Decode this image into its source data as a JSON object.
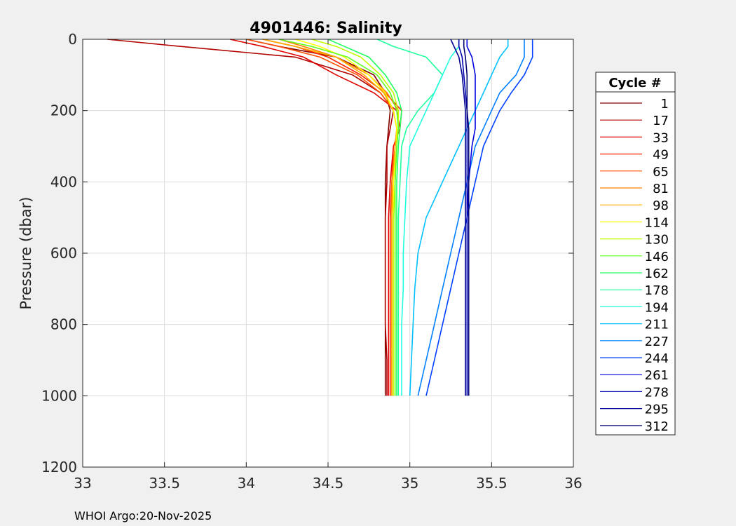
{
  "chart_data": {
    "type": "line",
    "title": "4901446:  Salinity",
    "xlabel": "",
    "ylabel": "Pressure (dbar)",
    "xlim": [
      33,
      36
    ],
    "ylim": [
      0,
      1200
    ],
    "y_reversed": true,
    "grid": true,
    "x_ticks": [
      "33",
      "33.5",
      "34",
      "34.5",
      "35",
      "35.5",
      "36"
    ],
    "y_ticks": [
      "0",
      "200",
      "400",
      "600",
      "800",
      "1000",
      "1200"
    ],
    "legend": {
      "title": "Cycle #",
      "placement": "right-outside",
      "entries": [
        "1",
        "17",
        "33",
        "49",
        "65",
        "81",
        "98",
        "114",
        "130",
        "146",
        "162",
        "178",
        "194",
        "211",
        "227",
        "244",
        "261",
        "278",
        "295",
        "312"
      ]
    },
    "pressure_levels": [
      0,
      20,
      50,
      100,
      150,
      200,
      250,
      300,
      400,
      500,
      600,
      700,
      800,
      900,
      1000
    ],
    "series": [
      {
        "name": "1",
        "color": "#800000",
        "salinity": [
          34.0,
          34.2,
          34.55,
          34.78,
          34.85,
          34.88,
          34.87,
          34.86,
          34.85,
          34.85,
          34.85,
          34.85,
          34.85,
          34.85,
          34.85
        ]
      },
      {
        "name": "17",
        "color": "#b00000",
        "salinity": [
          33.15,
          33.6,
          34.3,
          34.65,
          34.82,
          34.9,
          34.88,
          34.86,
          34.86,
          34.85,
          34.85,
          34.85,
          34.85,
          34.86,
          34.86
        ]
      },
      {
        "name": "33",
        "color": "#e00000",
        "salinity": [
          33.9,
          34.1,
          34.35,
          34.55,
          34.78,
          34.92,
          34.94,
          34.9,
          34.88,
          34.87,
          34.87,
          34.87,
          34.87,
          34.87,
          34.87
        ]
      },
      {
        "name": "49",
        "color": "#ff2000",
        "salinity": [
          34.1,
          34.3,
          34.5,
          34.7,
          34.85,
          34.95,
          34.94,
          34.9,
          34.89,
          34.88,
          34.88,
          34.88,
          34.88,
          34.88,
          34.88
        ]
      },
      {
        "name": "65",
        "color": "#ff5000",
        "salinity": [
          34.0,
          34.2,
          34.45,
          34.68,
          34.82,
          34.9,
          34.92,
          34.91,
          34.89,
          34.89,
          34.89,
          34.89,
          34.89,
          34.89,
          34.89
        ]
      },
      {
        "name": "81",
        "color": "#ff8000",
        "salinity": [
          34.2,
          34.35,
          34.55,
          34.75,
          34.86,
          34.93,
          34.93,
          34.91,
          34.89,
          34.89,
          34.89,
          34.89,
          34.89,
          34.89,
          34.89
        ]
      },
      {
        "name": "98",
        "color": "#ffb000",
        "salinity": [
          34.1,
          34.3,
          34.55,
          34.72,
          34.84,
          34.9,
          34.92,
          34.91,
          34.9,
          34.89,
          34.89,
          34.89,
          34.89,
          34.89,
          34.89
        ]
      },
      {
        "name": "114",
        "color": "#ffff00",
        "salinity": [
          34.3,
          34.45,
          34.6,
          34.75,
          34.85,
          34.9,
          34.92,
          34.92,
          34.9,
          34.9,
          34.9,
          34.9,
          34.9,
          34.9,
          34.9
        ]
      },
      {
        "name": "130",
        "color": "#c0ff00",
        "salinity": [
          34.4,
          34.55,
          34.7,
          34.82,
          34.9,
          34.93,
          34.93,
          34.92,
          34.91,
          34.9,
          34.9,
          34.9,
          34.9,
          34.9,
          34.9
        ]
      },
      {
        "name": "146",
        "color": "#60ff20",
        "salinity": [
          34.2,
          34.4,
          34.62,
          34.8,
          34.88,
          34.92,
          34.93,
          34.92,
          34.91,
          34.91,
          34.91,
          34.91,
          34.91,
          34.91,
          34.91
        ]
      },
      {
        "name": "162",
        "color": "#20ff60",
        "salinity": [
          34.5,
          34.6,
          34.75,
          34.85,
          34.92,
          34.95,
          34.94,
          34.93,
          34.92,
          34.92,
          34.92,
          34.92,
          34.92,
          34.92,
          34.92
        ]
      },
      {
        "name": "178",
        "color": "#20ffa0",
        "salinity": [
          34.8,
          34.9,
          35.1,
          35.2,
          35.15,
          35.05,
          34.98,
          34.95,
          34.94,
          34.93,
          34.93,
          34.93,
          34.93,
          34.93,
          34.93
        ]
      },
      {
        "name": "194",
        "color": "#20ffe0",
        "salinity": [
          35.3,
          35.3,
          35.25,
          35.2,
          35.15,
          35.1,
          35.05,
          35.0,
          34.98,
          34.97,
          34.96,
          34.96,
          34.95,
          34.95,
          34.95
        ]
      },
      {
        "name": "211",
        "color": "#00c0ff",
        "salinity": [
          35.6,
          35.6,
          35.55,
          35.5,
          35.45,
          35.4,
          35.35,
          35.3,
          35.2,
          35.1,
          35.05,
          35.03,
          35.02,
          35.01,
          35.0
        ]
      },
      {
        "name": "227",
        "color": "#0080ff",
        "salinity": [
          35.7,
          35.7,
          35.7,
          35.65,
          35.55,
          35.5,
          35.45,
          35.4,
          35.35,
          35.3,
          35.25,
          35.2,
          35.15,
          35.1,
          35.05
        ]
      },
      {
        "name": "244",
        "color": "#0040ff",
        "salinity": [
          35.75,
          35.75,
          35.75,
          35.7,
          35.62,
          35.55,
          35.5,
          35.45,
          35.4,
          35.35,
          35.3,
          35.25,
          35.2,
          35.15,
          35.1
        ]
      },
      {
        "name": "261",
        "color": "#0000e0",
        "salinity": [
          35.35,
          35.35,
          35.38,
          35.4,
          35.4,
          35.4,
          35.4,
          35.38,
          35.36,
          35.35,
          35.35,
          35.35,
          35.35,
          35.35,
          35.35
        ]
      },
      {
        "name": "278",
        "color": "#0000b0",
        "salinity": [
          35.3,
          35.3,
          35.32,
          35.33,
          35.34,
          35.35,
          35.35,
          35.35,
          35.35,
          35.35,
          35.35,
          35.35,
          35.35,
          35.35,
          35.35
        ]
      },
      {
        "name": "295",
        "color": "#000090",
        "salinity": [
          35.25,
          35.27,
          35.3,
          35.32,
          35.33,
          35.34,
          35.34,
          35.34,
          35.34,
          35.34,
          35.34,
          35.34,
          35.34,
          35.34,
          35.34
        ]
      },
      {
        "name": "312",
        "color": "#000070",
        "salinity": [
          35.33,
          35.33,
          35.34,
          35.35,
          35.35,
          35.35,
          35.36,
          35.36,
          35.36,
          35.36,
          35.36,
          35.36,
          35.36,
          35.36,
          35.36
        ]
      }
    ]
  },
  "footer": "WHOI Argo:20-Nov-2025"
}
